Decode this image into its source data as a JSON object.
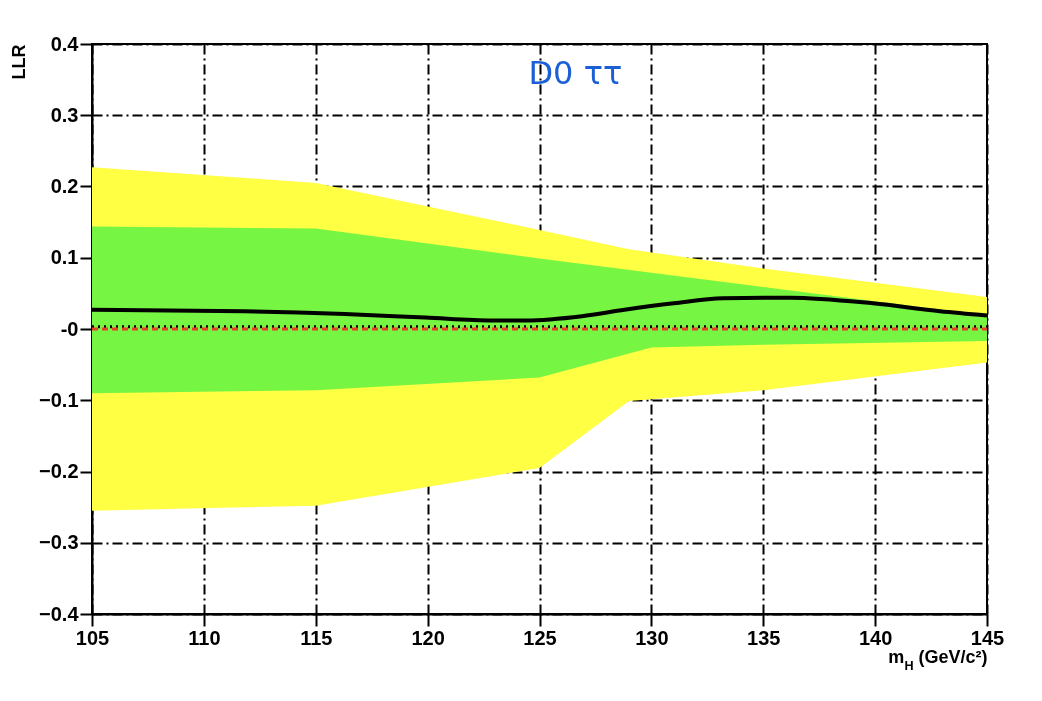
{
  "chart_data": {
    "type": "line",
    "xlabel": "m$_{H}$ (GeV/c²)",
    "ylabel": "LLR",
    "annotations": [
      "D0 ττ"
    ],
    "xlim": [
      105,
      145
    ],
    "xticks": [
      105,
      110,
      115,
      120,
      125,
      130,
      135,
      140,
      145
    ],
    "ylim": [
      -0.4,
      0.4
    ],
    "yticks": [
      -0.4,
      -0.3,
      -0.2,
      -0.1,
      {
        "value": 0,
        "label": "-0"
      },
      0.1,
      0.2,
      0.3,
      0.4
    ],
    "grid": true,
    "series": [
      {
        "color": "#ffff44",
        "x": [
          105,
          115,
          125,
          129,
          135,
          145
        ],
        "values": [
          null,
          null,
          null,
          null,
          null,
          null
        ],
        "lower": [
          -0.255,
          -0.248,
          -0.195,
          -0.101,
          -0.086,
          -0.047
        ],
        "upper": [
          0.227,
          0.205,
          0.139,
          0.112,
          0.085,
          0.045
        ]
      },
      {
        "color": "#77f543",
        "x": [
          105,
          115,
          125,
          130,
          135,
          145
        ],
        "values": [
          null,
          null,
          null,
          null,
          null,
          null
        ],
        "lower": [
          -0.09,
          -0.086,
          -0.068,
          -0.026,
          -0.022,
          -0.017
        ],
        "upper": [
          0.144,
          0.141,
          0.099,
          0.079,
          0.059,
          0.019
        ]
      },
      {
        "color": "#000000",
        "line_style": "solid",
        "x": [
          105,
          111.8,
          116.3,
          119.9,
          122.9,
          124.4,
          126.9,
          128.8,
          131,
          133.2,
          136.2,
          139.9,
          142.9,
          145
        ],
        "values": [
          0.027,
          0.025,
          0.021,
          0.016,
          0.012,
          0.012,
          0.018,
          0.027,
          0.036,
          0.043,
          0.044,
          0.036,
          0.025,
          0.019
        ]
      },
      {
        "color": "#000000",
        "line_style": "dotted",
        "x": [
          105,
          145
        ],
        "values": [
          0.003,
          0.003
        ]
      },
      {
        "color": "#e8412a",
        "line_style": "dashed",
        "x": [
          105,
          145
        ],
        "values": [
          0,
          0
        ]
      }
    ]
  }
}
